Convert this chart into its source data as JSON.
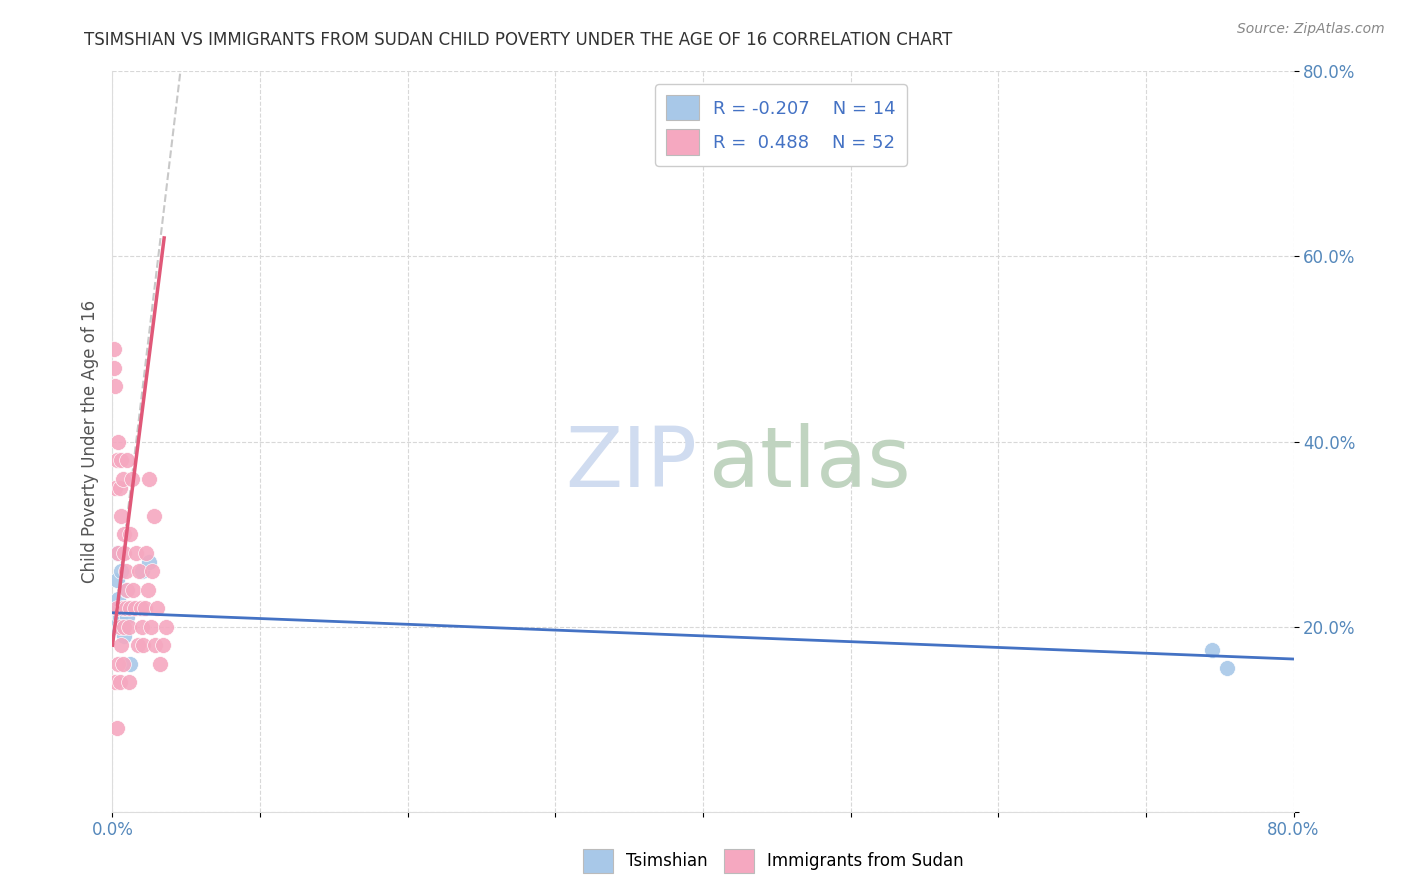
{
  "title": "TSIMSHIAN VS IMMIGRANTS FROM SUDAN CHILD POVERTY UNDER THE AGE OF 16 CORRELATION CHART",
  "source": "Source: ZipAtlas.com",
  "ylabel": "Child Poverty Under the Age of 16",
  "xlim": [
    0.0,
    0.8
  ],
  "ylim": [
    0.0,
    0.8
  ],
  "xtick_positions": [
    0.0,
    0.1,
    0.2,
    0.3,
    0.4,
    0.5,
    0.6,
    0.7,
    0.8
  ],
  "xticklabels": [
    "0.0%",
    "",
    "",
    "",
    "",
    "",
    "",
    "",
    "80.0%"
  ],
  "ytick_positions": [
    0.0,
    0.2,
    0.4,
    0.6,
    0.8
  ],
  "yticklabels_right": [
    "",
    "20.0%",
    "40.0%",
    "60.0%",
    "80.0%"
  ],
  "blue_dot_color": "#A8C8E8",
  "pink_dot_color": "#F5A8C0",
  "blue_line_color": "#4472C4",
  "pink_line_color": "#E05878",
  "gray_line_color": "#C8C8C8",
  "background_color": "#FFFFFF",
  "grid_color": "#D8D8D8",
  "title_color": "#333333",
  "tick_color": "#5588BB",
  "source_color": "#888888",
  "legend_text_color": "#4472C4",
  "watermark_zip_color": "#D0DCF0",
  "watermark_atlas_color": "#C0D4C0",
  "tsimshian_x": [
    0.001,
    0.002,
    0.003,
    0.003,
    0.004,
    0.005,
    0.006,
    0.007,
    0.008,
    0.009,
    0.01,
    0.012,
    0.02,
    0.025,
    0.745,
    0.755
  ],
  "tsimshian_y": [
    0.2,
    0.22,
    0.25,
    0.28,
    0.23,
    0.21,
    0.26,
    0.22,
    0.19,
    0.24,
    0.21,
    0.16,
    0.26,
    0.27,
    0.175,
    0.155
  ],
  "sudan_x": [
    0.001,
    0.001,
    0.002,
    0.002,
    0.002,
    0.003,
    0.003,
    0.003,
    0.004,
    0.004,
    0.004,
    0.005,
    0.005,
    0.005,
    0.006,
    0.006,
    0.006,
    0.007,
    0.007,
    0.007,
    0.008,
    0.008,
    0.008,
    0.009,
    0.009,
    0.01,
    0.01,
    0.011,
    0.011,
    0.012,
    0.012,
    0.013,
    0.014,
    0.015,
    0.016,
    0.017,
    0.018,
    0.019,
    0.02,
    0.021,
    0.022,
    0.023,
    0.024,
    0.025,
    0.026,
    0.027,
    0.028,
    0.029,
    0.03,
    0.032,
    0.034,
    0.036
  ],
  "sudan_y": [
    0.5,
    0.48,
    0.46,
    0.14,
    0.35,
    0.38,
    0.22,
    0.09,
    0.4,
    0.28,
    0.16,
    0.35,
    0.2,
    0.14,
    0.32,
    0.18,
    0.38,
    0.22,
    0.36,
    0.16,
    0.28,
    0.2,
    0.3,
    0.26,
    0.22,
    0.38,
    0.24,
    0.2,
    0.14,
    0.3,
    0.22,
    0.36,
    0.24,
    0.22,
    0.28,
    0.18,
    0.26,
    0.22,
    0.2,
    0.18,
    0.22,
    0.28,
    0.24,
    0.36,
    0.2,
    0.26,
    0.32,
    0.18,
    0.22,
    0.16,
    0.18,
    0.2
  ],
  "dot_size": 130
}
